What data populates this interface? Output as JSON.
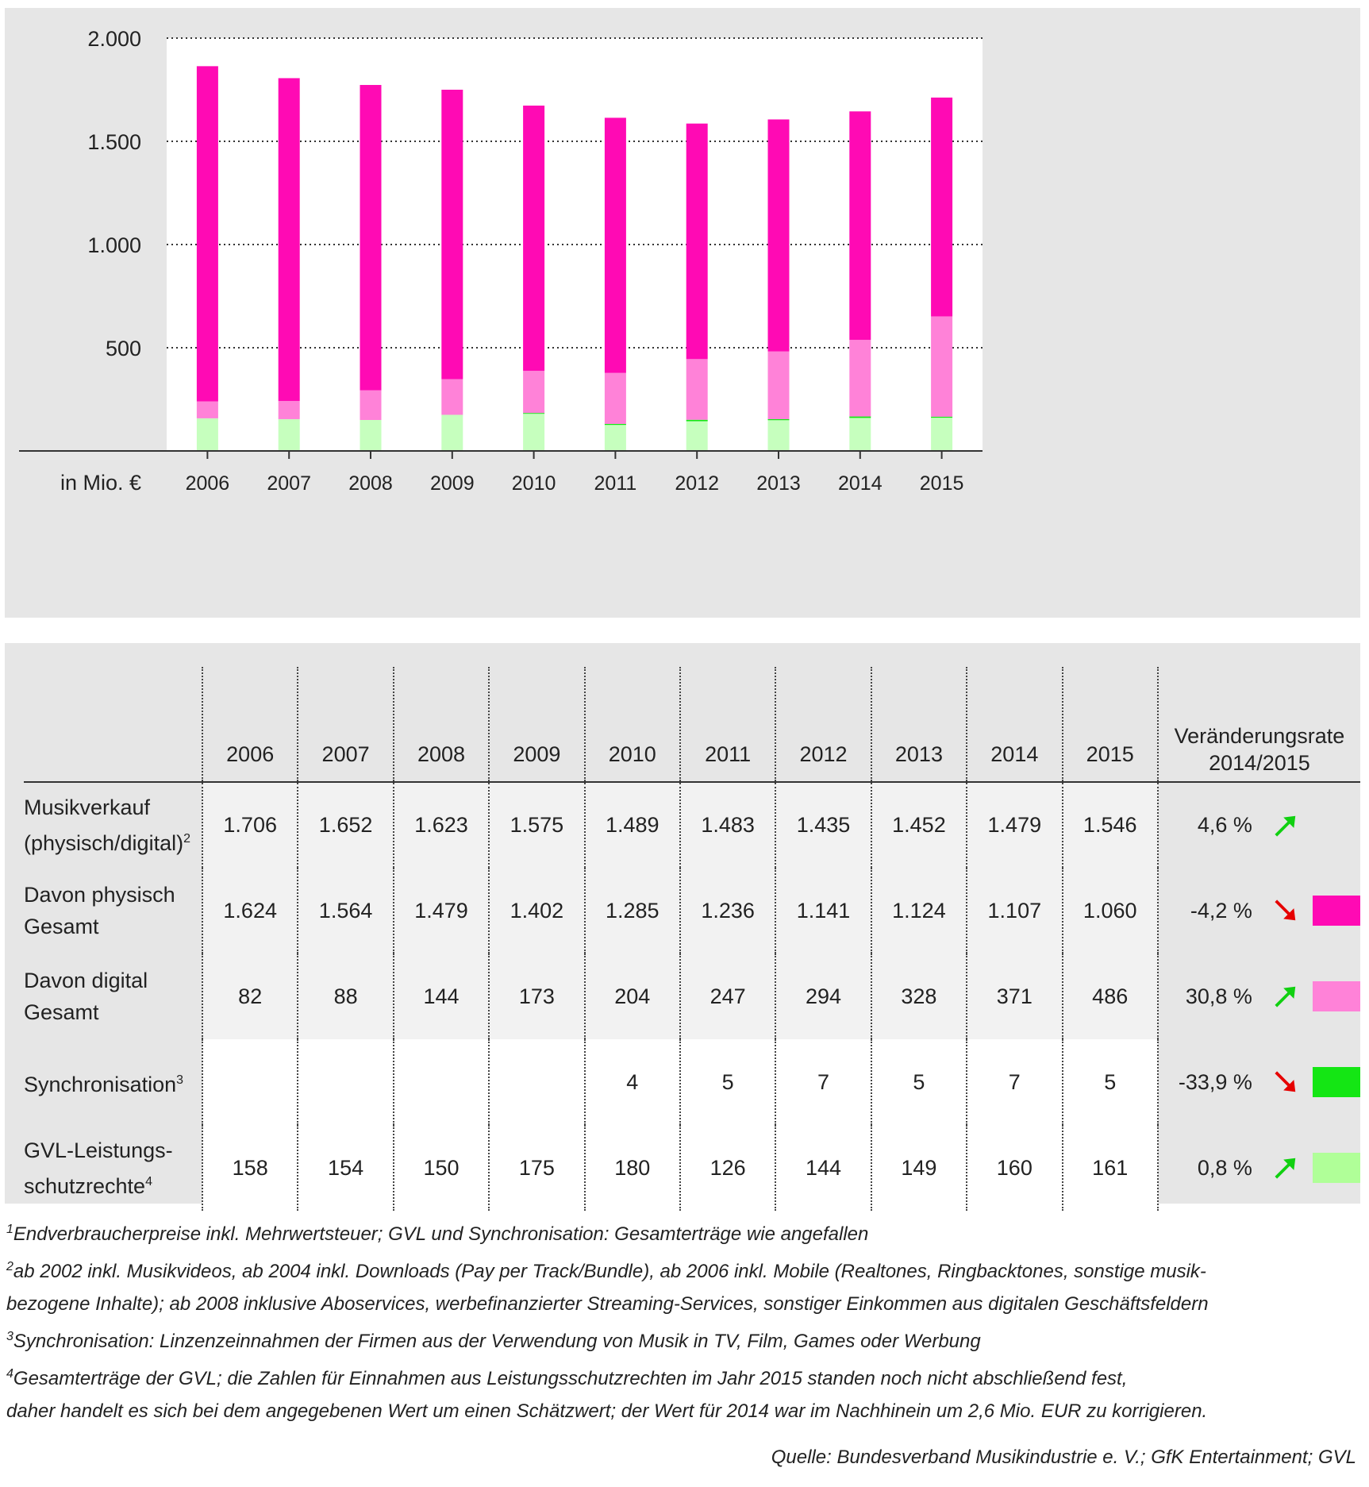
{
  "chart_data": {
    "type": "bar",
    "stacked": true,
    "unit_label": "in Mio. €",
    "categories": [
      "2006",
      "2007",
      "2008",
      "2009",
      "2010",
      "2011",
      "2012",
      "2013",
      "2014",
      "2015"
    ],
    "ylim": [
      0,
      2000
    ],
    "yticks": [
      {
        "value": 500,
        "label": "500"
      },
      {
        "value": 1000,
        "label": "1.000"
      },
      {
        "value": 1500,
        "label": "1.500"
      },
      {
        "value": 2000,
        "label": "2.000"
      }
    ],
    "series": [
      {
        "name": "GVL-Leistungsschutzrechte",
        "color": "#c6ffbe",
        "values": [
          158,
          154,
          150,
          175,
          180,
          126,
          144,
          149,
          160,
          161
        ]
      },
      {
        "name": "Synchronisation",
        "color": "#14e614",
        "values": [
          0,
          0,
          0,
          0,
          4,
          5,
          7,
          5,
          7,
          5
        ]
      },
      {
        "name": "Davon digital Gesamt",
        "color": "#ff82d8",
        "values": [
          82,
          88,
          144,
          173,
          204,
          247,
          294,
          328,
          371,
          486
        ]
      },
      {
        "name": "Davon physisch Gesamt",
        "color": "#ff0ab4",
        "values": [
          1624,
          1564,
          1479,
          1402,
          1285,
          1236,
          1141,
          1124,
          1107,
          1060
        ]
      }
    ]
  },
  "table": {
    "years": [
      "2006",
      "2007",
      "2008",
      "2009",
      "2010",
      "2011",
      "2012",
      "2013",
      "2014",
      "2015"
    ],
    "rate_header": [
      "Veränderungsrate",
      "2014/2015"
    ],
    "rows": [
      {
        "label": [
          "Musikverkauf",
          "(physisch/digital)"
        ],
        "sup": "2",
        "values": [
          "1.706",
          "1.652",
          "1.623",
          "1.575",
          "1.489",
          "1.483",
          "1.435",
          "1.452",
          "1.479",
          "1.546"
        ],
        "rate": "4,6 %",
        "trend": "up",
        "swatch": "",
        "shade": "gray"
      },
      {
        "label": [
          "Davon physisch",
          "Gesamt"
        ],
        "sup": "",
        "values": [
          "1.624",
          "1.564",
          "1.479",
          "1.402",
          "1.285",
          "1.236",
          "1.141",
          "1.124",
          "1.107",
          "1.060"
        ],
        "rate": "-4,2 %",
        "trend": "down",
        "swatch": "#ff0ab4",
        "shade": "gray"
      },
      {
        "label": [
          "Davon digital",
          "Gesamt"
        ],
        "sup": "",
        "values": [
          "82",
          "88",
          "144",
          "173",
          "204",
          "247",
          "294",
          "328",
          "371",
          "486"
        ],
        "rate": "30,8 %",
        "trend": "up",
        "swatch": "#ff82d8",
        "shade": "gray"
      },
      {
        "label": [
          "Synchronisation"
        ],
        "sup": "3",
        "values": [
          "",
          "",
          "",
          "",
          "4",
          "5",
          "7",
          "5",
          "7",
          "5"
        ],
        "rate": "-33,9 %",
        "trend": "down",
        "swatch": "#14e614",
        "shade": "white"
      },
      {
        "label": [
          "GVL-Leistungs-",
          "schutzrechte"
        ],
        "sup": "4",
        "values": [
          "158",
          "154",
          "150",
          "175",
          "180",
          "126",
          "144",
          "149",
          "160",
          "161"
        ],
        "rate": "0,8 %",
        "trend": "up",
        "swatch": "#b0ff98",
        "shade": "white"
      }
    ]
  },
  "colors": {
    "up": "#10d010",
    "down": "#e60000"
  },
  "footnotes": [
    {
      "num": "1",
      "text": "Endverbraucherpreise inkl. Mehrwertsteuer; GVL und Synchronisation: Gesamterträge wie angefallen"
    },
    {
      "num": "2",
      "text": "ab 2002 inkl. Musikvideos, ab 2004 inkl. Downloads (Pay per Track/Bundle), ab 2006 inkl. Mobile (Realtones, Ringbacktones, sonstige musik-"
    },
    {
      "num": "",
      "text": "bezogene Inhalte); ab 2008 inklusive Aboservices, werbefinanzierter Streaming-Services, sonstiger Einkommen aus digitalen Geschäftsfeldern"
    },
    {
      "num": "3",
      "text": "Synchronisation: Linzenzeinnahmen der Firmen aus der Verwendung von Musik in TV, Film, Games oder Werbung"
    },
    {
      "num": "4",
      "text": "Gesamterträge der GVL; die Zahlen für Einnahmen aus Leistungsschutzrechten im Jahr 2015 standen noch nicht abschließend fest,"
    },
    {
      "num": "",
      "text": "daher handelt es sich bei dem angegebenen Wert um einen Schätzwert; der Wert für 2014 war im Nachhinein um 2,6 Mio. EUR zu korrigieren."
    }
  ],
  "source": "Quelle: Bundesverband Musikindustrie e. V.; GfK Entertainment; GVL"
}
